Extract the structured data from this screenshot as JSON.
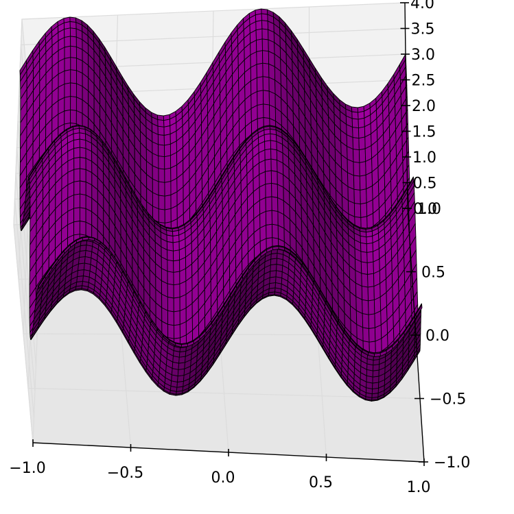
{
  "chart_data": {
    "type": "surface",
    "title": "",
    "function": "z = 2 + sin(2*pi*x) + cos(2*pi*y)",
    "color": "#8b008b",
    "edge_color": "#000000",
    "pane_color": "#f2f2f2",
    "grid": true,
    "x": {
      "label": "",
      "range": [
        -1.0,
        1.0
      ],
      "ticks": [
        -1.0,
        -0.5,
        0.0,
        0.5,
        1.0
      ],
      "tick_labels": [
        "−1.0",
        "−0.5",
        "0.0",
        "0.5",
        "1.0"
      ]
    },
    "y": {
      "label": "",
      "range": [
        -1.0,
        1.0
      ],
      "ticks": [
        -1.0,
        -0.5,
        0.0,
        0.5,
        1.0
      ],
      "tick_labels": [
        "−1.0",
        "−0.5",
        "0.0",
        "0.5",
        "1.0"
      ]
    },
    "z": {
      "label": "",
      "range": [
        0.0,
        4.0
      ],
      "ticks": [
        0.0,
        0.5,
        1.0,
        1.5,
        2.0,
        2.5,
        3.0,
        3.5,
        4.0
      ],
      "tick_labels": [
        "0.0",
        "0.5",
        "1.0",
        "1.5",
        "2.0",
        "2.5",
        "3.0",
        "3.5",
        "4.0"
      ]
    },
    "view": {
      "elevation_deg": 60,
      "azimuth": "viewed from the -y side"
    }
  }
}
